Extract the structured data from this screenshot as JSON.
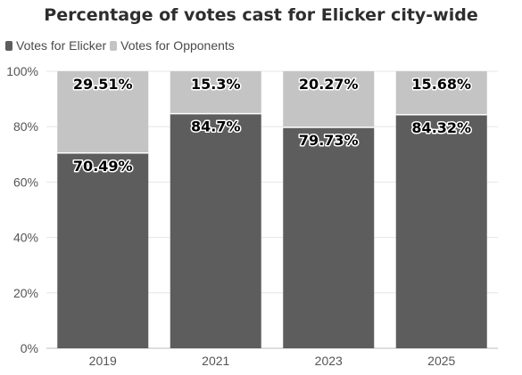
{
  "chart_data": {
    "type": "bar",
    "stacked": true,
    "title": "Percentage of votes cast for Elicker city-wide",
    "categories": [
      "2019",
      "2021",
      "2023",
      "2025"
    ],
    "series": [
      {
        "name": "Votes for Elicker",
        "color": "#5d5d5d",
        "values": [
          70.49,
          84.7,
          79.73,
          84.32
        ],
        "labels": [
          "70.49%",
          "84.7%",
          "79.73%",
          "84.32%"
        ]
      },
      {
        "name": "Votes for Opponents",
        "color": "#c4c4c4",
        "values": [
          29.51,
          15.3,
          20.27,
          15.68
        ],
        "labels": [
          "29.51%",
          "15.3%",
          "20.27%",
          "15.68%"
        ]
      }
    ],
    "ylim": [
      0,
      100
    ],
    "yticks": [
      "0%",
      "20%",
      "40%",
      "60%",
      "80%",
      "100%"
    ],
    "xlabel": "",
    "ylabel": "",
    "grid": true,
    "legend_position": "top-left"
  }
}
